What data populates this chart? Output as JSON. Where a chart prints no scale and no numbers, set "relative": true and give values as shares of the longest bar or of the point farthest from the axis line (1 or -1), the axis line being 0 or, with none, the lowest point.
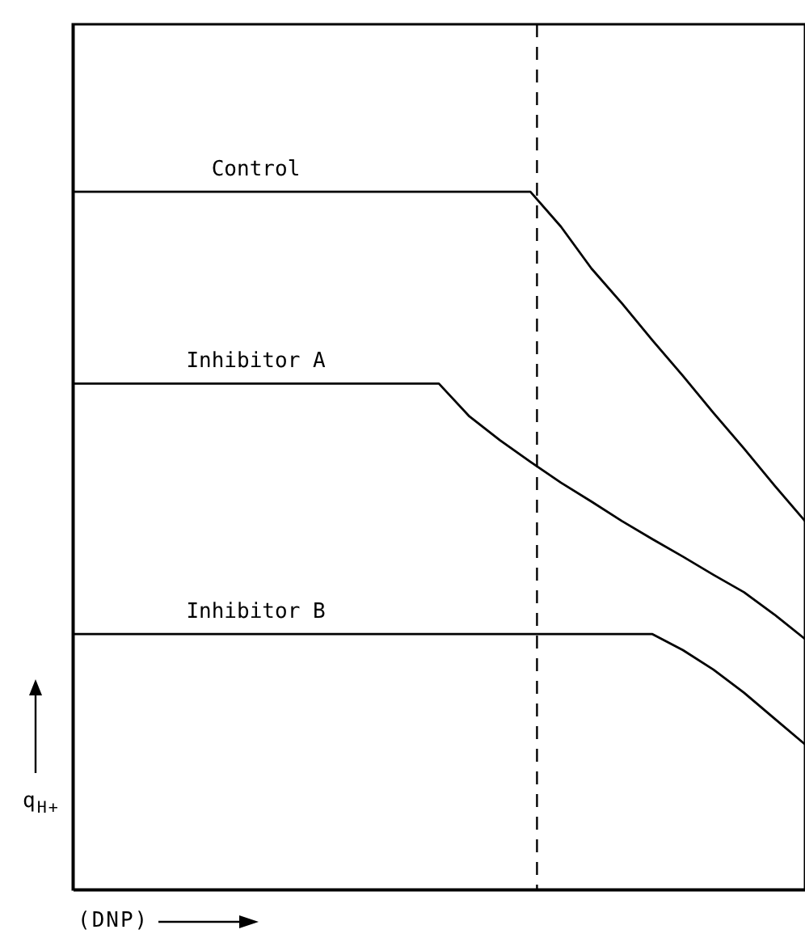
{
  "chart_data": {
    "type": "line",
    "relative": true,
    "xlabel": "(DNP)",
    "ylabel": "q$_{H+}$",
    "grid": false,
    "marker": "none",
    "line_style": "solid",
    "categories": [
      null,
      null,
      null,
      null,
      null,
      null,
      null,
      null,
      null,
      null,
      null,
      null,
      null,
      null,
      null,
      null,
      null,
      null,
      null,
      null,
      null,
      null,
      null,
      null,
      null
    ],
    "series": [
      {
        "name": "Control",
        "color": "#000000",
        "values": [
          1,
          1,
          1,
          1,
          1,
          1,
          1,
          1,
          1,
          1,
          1,
          1,
          1,
          1,
          1,
          1,
          0.95,
          0.89,
          0.84,
          0.787,
          0.736,
          0.683,
          0.632,
          0.579,
          0.528
        ]
      },
      {
        "name": "Inhibitor A",
        "color": "#000000",
        "values": [
          0.725,
          0.725,
          0.725,
          0.725,
          0.725,
          0.725,
          0.725,
          0.725,
          0.725,
          0.725,
          0.725,
          0.725,
          0.725,
          0.678,
          0.644,
          0.613,
          0.583,
          0.556,
          0.528,
          0.502,
          0.477,
          0.451,
          0.426,
          0.394,
          0.359
        ]
      },
      {
        "name": "Inhibitor B",
        "color": "#000000",
        "values": [
          0.366,
          0.366,
          0.366,
          0.366,
          0.366,
          0.366,
          0.366,
          0.366,
          0.366,
          0.366,
          0.366,
          0.366,
          0.366,
          0.366,
          0.366,
          0.366,
          0.366,
          0.366,
          0.366,
          0.366,
          0.343,
          0.315,
          0.282,
          0.245,
          0.208
        ]
      }
    ]
  }
}
